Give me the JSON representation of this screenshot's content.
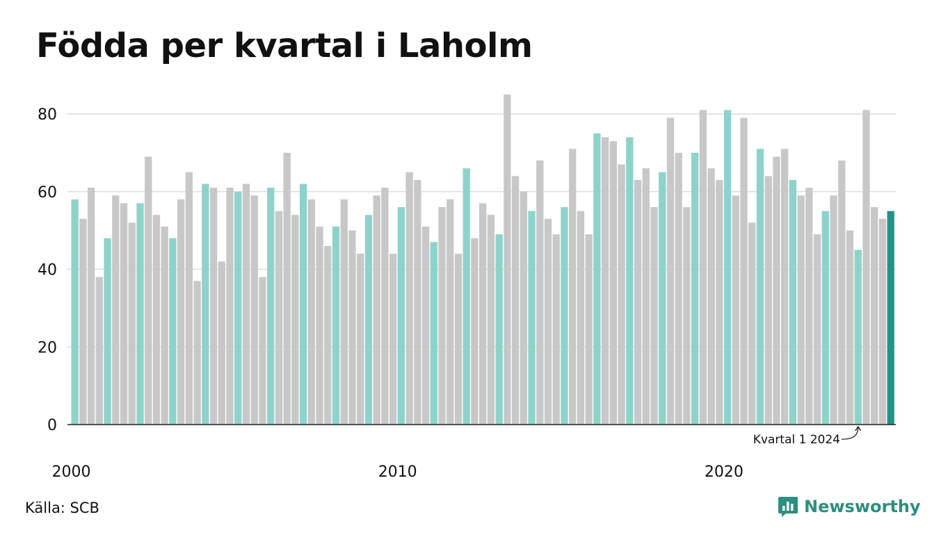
{
  "title": "Födda per kvartal i Laholm",
  "source": "Källa: SCB",
  "brand": {
    "name": "Newsworthy",
    "icon": "newsworthy-logo-icon"
  },
  "colors": {
    "q1": "#8dd3cb",
    "other": "#c8c8c8",
    "latest": "#1f9486",
    "grid": "#dcdcdc",
    "axis": "#222222",
    "brand": "#2d8f7f"
  },
  "chart_data": {
    "type": "bar",
    "title": "Födda per kvartal i Laholm",
    "xlabel": "",
    "ylabel": "",
    "ylim": [
      0,
      85
    ],
    "yticks": [
      0,
      20,
      40,
      60,
      80
    ],
    "xtick_labels": [
      "2000",
      "2010",
      "2020"
    ],
    "start_year": 2000,
    "grid": true,
    "annotation": {
      "text": "Kvartal 1 2024",
      "target_index": 96
    },
    "series": [
      {
        "values": [
          58,
          53,
          61,
          38,
          48,
          59,
          57,
          52,
          57,
          69,
          54,
          51,
          48,
          58,
          65,
          37,
          62,
          61,
          42,
          61,
          60,
          62,
          59,
          38,
          61,
          55,
          70,
          54,
          62,
          58,
          51,
          46,
          51,
          58,
          50,
          44,
          54,
          59,
          61,
          44,
          56,
          65,
          63,
          51,
          47,
          56,
          58,
          44,
          66,
          48,
          57,
          54,
          49,
          85,
          64,
          60,
          55,
          68,
          53,
          49,
          56,
          71,
          55,
          49,
          75,
          74,
          73,
          67,
          74,
          63,
          66,
          56,
          65,
          79,
          70,
          56,
          70,
          81,
          66,
          63,
          81,
          59,
          79,
          52,
          71,
          64,
          69,
          71,
          63,
          59,
          61,
          49,
          55,
          59,
          68,
          50,
          45,
          81,
          56,
          53,
          55
        ]
      }
    ]
  }
}
